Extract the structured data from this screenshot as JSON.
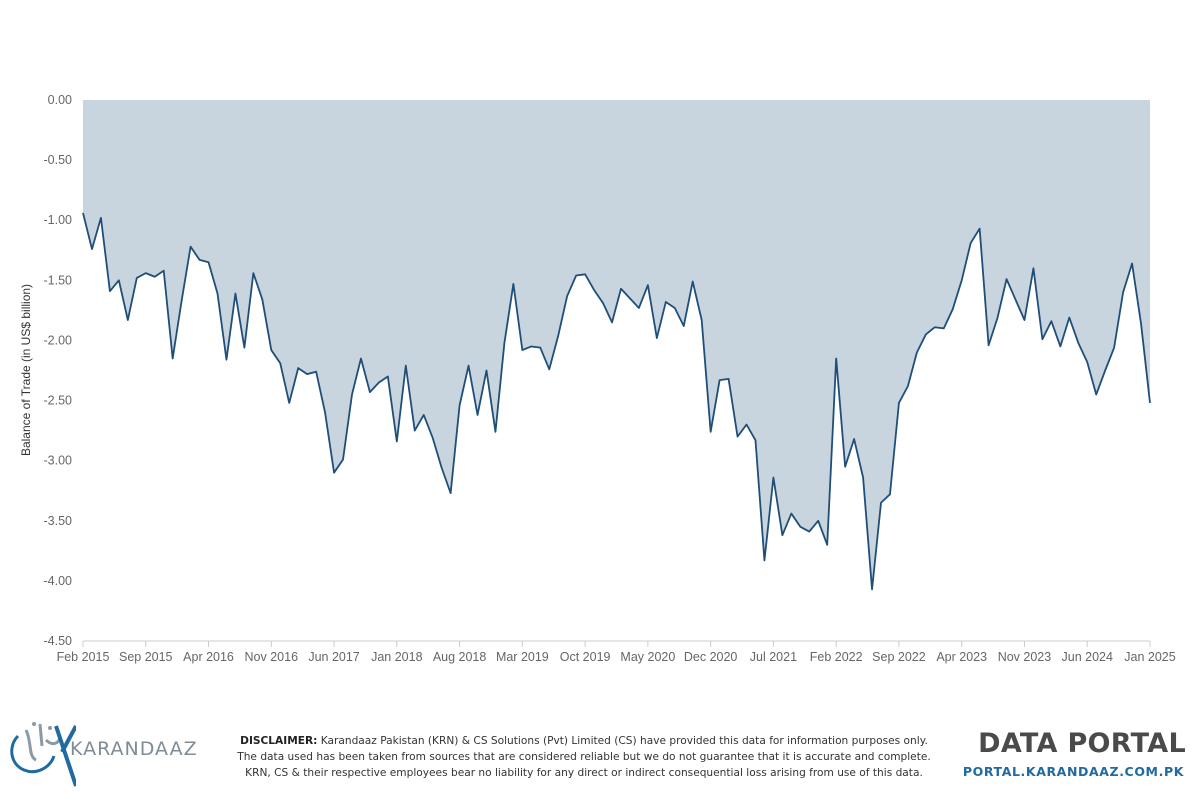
{
  "chart_data": {
    "type": "area",
    "title": "",
    "xlabel": "",
    "ylabel": "Balance of Trade (in US$ billion)",
    "ylim": [
      -4.5,
      0
    ],
    "y_ticks": [
      "0.00",
      "-0.50",
      "-1.00",
      "-1.50",
      "-2.00",
      "-2.50",
      "-3.00",
      "-3.50",
      "-4.00",
      "-4.50"
    ],
    "x_start": "Feb 2015",
    "x_end": "Jan 2025",
    "x_ticks": [
      {
        "label": "Feb 2015",
        "date": "2015-02"
      },
      {
        "label": "Sep 2015",
        "date": "2015-09"
      },
      {
        "label": "Apr 2016",
        "date": "2016-04"
      },
      {
        "label": "Nov 2016",
        "date": "2016-11"
      },
      {
        "label": "Jun 2017",
        "date": "2017-06"
      },
      {
        "label": "Jan 2018",
        "date": "2018-01"
      },
      {
        "label": "Aug 2018",
        "date": "2018-08"
      },
      {
        "label": "Mar 2019",
        "date": "2019-03"
      },
      {
        "label": "Oct 2019",
        "date": "2019-10"
      },
      {
        "label": "May 2020",
        "date": "2020-05"
      },
      {
        "label": "Dec 2020",
        "date": "2020-12"
      },
      {
        "label": "Jul 2021",
        "date": "2021-07"
      },
      {
        "label": "Feb 2022",
        "date": "2022-02"
      },
      {
        "label": "Sep 2022",
        "date": "2022-09"
      },
      {
        "label": "Apr 2023",
        "date": "2023-04"
      },
      {
        "label": "Nov 2023",
        "date": "2023-11"
      },
      {
        "label": "Jun 2024",
        "date": "2024-06"
      },
      {
        "label": "Jan 2025",
        "date": "2025-01"
      }
    ],
    "grid": false,
    "legend": "none",
    "colors": {
      "line": "#1f4e79",
      "fill": "#c8d4de"
    },
    "series": [
      {
        "values": [
          -0.94,
          -1.24,
          -0.98,
          -1.59,
          -1.5,
          -1.83,
          -1.48,
          -1.44,
          -1.47,
          -1.42,
          -2.15,
          -1.67,
          -1.22,
          -1.33,
          -1.35,
          -1.61,
          -2.16,
          -1.61,
          -2.06,
          -1.44,
          -1.66,
          -2.08,
          -2.19,
          -2.52,
          -2.23,
          -2.28,
          -2.26,
          -2.6,
          -3.1,
          -2.99,
          -2.45,
          -2.15,
          -2.43,
          -2.35,
          -2.3,
          -2.84,
          -2.21,
          -2.75,
          -2.62,
          -2.81,
          -3.06,
          -3.27,
          -2.54,
          -2.21,
          -2.62,
          -2.25,
          -2.76,
          -2.02,
          -1.53,
          -2.08,
          -2.05,
          -2.06,
          -2.24,
          -1.96,
          -1.63,
          -1.46,
          -1.45,
          -1.58,
          -1.69,
          -1.85,
          -1.57,
          -1.65,
          -1.73,
          -1.54,
          -1.98,
          -1.68,
          -1.73,
          -1.88,
          -1.51,
          -1.83,
          -2.76,
          -2.33,
          -2.32,
          -2.8,
          -2.7,
          -2.83,
          -3.83,
          -3.14,
          -3.62,
          -3.44,
          -3.55,
          -3.59,
          -3.5,
          -3.7,
          -2.15,
          -3.05,
          -2.82,
          -3.14,
          -4.07,
          -3.35,
          -3.28,
          -2.52,
          -2.38,
          -2.1,
          -1.95,
          -1.89,
          -1.9,
          -1.74,
          -1.5,
          -1.19,
          -1.07,
          -2.04,
          -1.81,
          -1.49,
          -1.66,
          -1.83,
          -1.4,
          -1.99,
          -1.84,
          -2.05,
          -1.81,
          -2.02,
          -2.18,
          -2.45,
          -2.25,
          -2.06,
          -1.6,
          -1.36,
          -1.86,
          -2.52
        ]
      }
    ]
  },
  "footer": {
    "brand": "KARANDAAZ",
    "disclaimer_label": "DISCLAIMER:",
    "disclaimer_lines": [
      "Karandaaz Pakistan (KRN) & CS Solutions (Pvt) Limited (CS) have provided this data for information purposes only.",
      "The data used has been taken from sources that are considered reliable but we do not guarantee that it is accurate and complete.",
      "KRN, CS & their respective employees bear no liability for any direct or indirect consequential loss arising from use of this data."
    ],
    "portal_title": "DATA PORTAL",
    "portal_url": "PORTAL.KARANDAAZ.COM.PK"
  }
}
